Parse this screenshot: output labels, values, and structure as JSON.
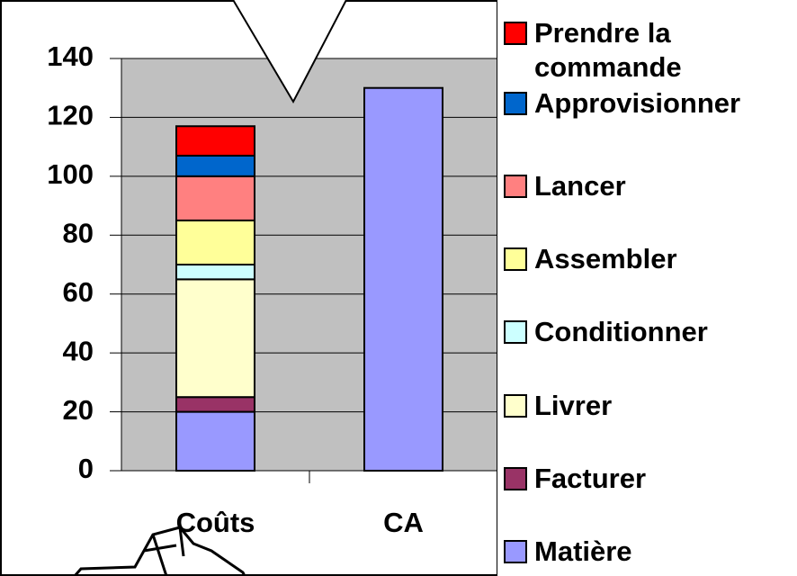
{
  "chart_data": {
    "type": "stacked-bar",
    "categories": [
      "Coûts",
      "CA"
    ],
    "series": [
      {
        "name": "Matière",
        "color": "#9999ff",
        "values": [
          20,
          130
        ]
      },
      {
        "name": "Facturer",
        "color": "#993366",
        "values": [
          5,
          null
        ]
      },
      {
        "name": "Livrer",
        "color": "#ffffcc",
        "values": [
          40,
          null
        ]
      },
      {
        "name": "Conditionner",
        "color": "#ccffff",
        "values": [
          5,
          null
        ]
      },
      {
        "name": "Assembler",
        "color": "#ffff99",
        "values": [
          15,
          null
        ]
      },
      {
        "name": "Lancer",
        "color": "#ff8080",
        "values": [
          15,
          null
        ]
      },
      {
        "name": "Approvisionner",
        "color": "#0066cc",
        "values": [
          7,
          null
        ]
      },
      {
        "name": "Prendre la commande",
        "color": "#ff0000",
        "values": [
          10,
          null
        ]
      }
    ],
    "ylim": [
      0,
      140
    ],
    "yticks": [
      0,
      20,
      40,
      60,
      80,
      100,
      120,
      140
    ],
    "grid": true,
    "legend": "right"
  }
}
